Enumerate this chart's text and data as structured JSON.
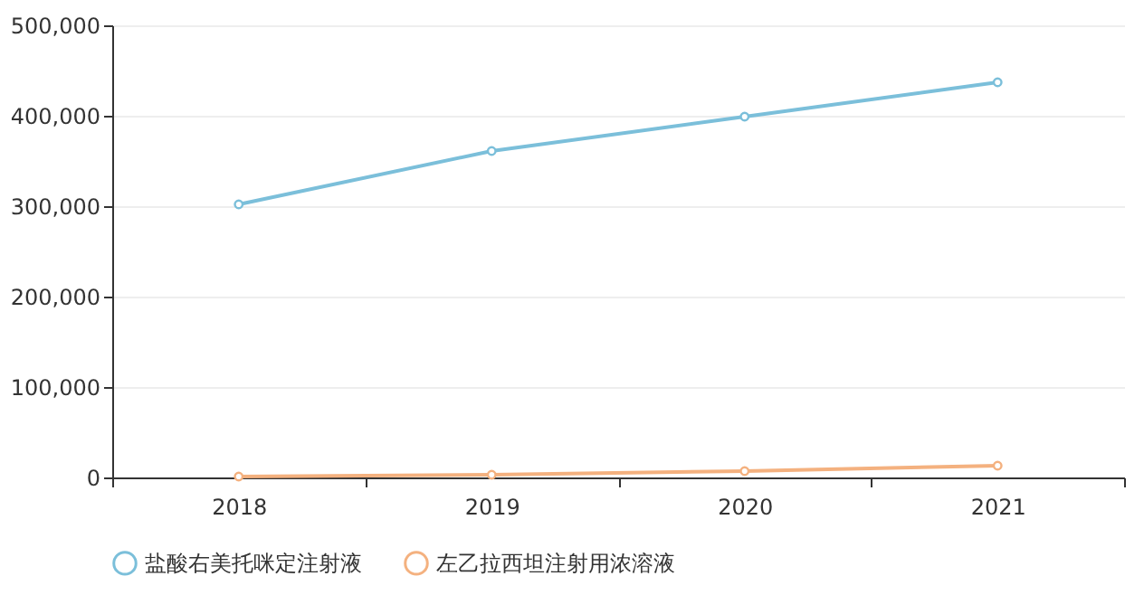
{
  "chart_data": {
    "type": "line",
    "categories": [
      "2018",
      "2019",
      "2020",
      "2021"
    ],
    "series": [
      {
        "name": "盐酸右美托咪定注射液",
        "color": "#7bbfda",
        "values": [
          302000,
          361000,
          399000,
          437000
        ]
      },
      {
        "name": "左乙拉西坦注射用浓溶液",
        "color": "#f4b17f",
        "values": [
          1000,
          3000,
          7000,
          13000
        ]
      }
    ],
    "ylim": [
      0,
      500000
    ],
    "yticks": [
      0,
      {
        "value": 100000,
        "label": "100,000"
      },
      {
        "value": 200000,
        "label": "200,000"
      },
      {
        "value": 300000,
        "label": "300,000"
      },
      {
        "value": 400000,
        "label": "400,000"
      },
      {
        "value": 500000,
        "label": "500,000"
      }
    ],
    "grid": "y",
    "legend": "bottom",
    "marker": "circle",
    "line_style": "solid"
  }
}
